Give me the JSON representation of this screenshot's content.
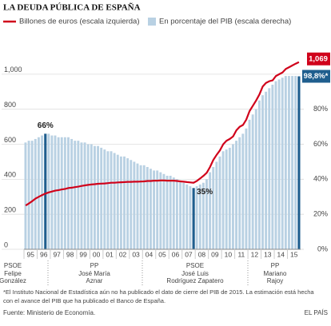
{
  "chart_data": {
    "type": "line_bar",
    "title": "LA DEUDA PÚBLICA DE ESPAÑA",
    "categories": [
      null,
      "95",
      null,
      null,
      null,
      "96",
      null,
      null,
      null,
      "97",
      null,
      null,
      null,
      "98",
      null,
      null,
      null,
      "99",
      null,
      null,
      null,
      "00",
      null,
      null,
      null,
      "01",
      null,
      null,
      null,
      "02",
      null,
      null,
      null,
      "03",
      null,
      null,
      null,
      "04",
      null,
      null,
      null,
      "05",
      null,
      null,
      null,
      "06",
      null,
      null,
      null,
      "07",
      null,
      null,
      null,
      "08",
      null,
      null,
      null,
      "09",
      null,
      null,
      null,
      "10",
      null,
      null,
      null,
      "11",
      null,
      null,
      null,
      "12",
      null,
      null,
      null,
      "13",
      null,
      null,
      null,
      "14",
      null,
      null,
      null,
      "15",
      null,
      null
    ],
    "series": [
      {
        "name": "Billones de euros (escala izquierda)",
        "color": "#d0021b",
        "values": [
          250,
          262,
          275,
          290,
          300,
          310,
          318,
          325,
          330,
          335,
          338,
          342,
          345,
          350,
          352,
          355,
          358,
          362,
          365,
          368,
          370,
          372,
          374,
          375,
          376,
          378,
          380,
          380,
          382,
          383,
          384,
          385,
          385,
          386,
          386,
          387,
          388,
          390,
          390,
          392,
          392,
          393,
          393,
          392,
          392,
          392,
          390,
          388,
          386,
          384,
          382,
          380,
          390,
          405,
          420,
          437,
          470,
          510,
          540,
          565,
          600,
          620,
          630,
          645,
          680,
          700,
          710,
          740,
          790,
          820,
          850,
          885,
          930,
          950,
          960,
          965,
          990,
          1000,
          1010,
          1030,
          1040,
          1050,
          1060,
          1069
        ],
        "value_labels": [
          null,
          null,
          null,
          null,
          null,
          null,
          null,
          null,
          null,
          null,
          null,
          null,
          null,
          null,
          null,
          null,
          null,
          null,
          null,
          null,
          null,
          null,
          null,
          null,
          null,
          null,
          null,
          null,
          null,
          null,
          null,
          null,
          null,
          null,
          null,
          null,
          null,
          null,
          null,
          null,
          null,
          null,
          null,
          null,
          null,
          null,
          null,
          null,
          null,
          null,
          null,
          null,
          null,
          null,
          null,
          null,
          null,
          null,
          null,
          null,
          null,
          null,
          null,
          null,
          null,
          null,
          null,
          null,
          null,
          null,
          null,
          null,
          null,
          null,
          null,
          null,
          null,
          null,
          null,
          null,
          null,
          null,
          null,
          "1,069"
        ]
      },
      {
        "name": "En porcentaje del PIB (escala derecha)",
        "color": "#b9d1e3",
        "highlight_color": "#1f5e8e",
        "axis": "y2",
        "values": [
          61,
          62,
          62,
          63,
          64,
          65,
          66,
          66,
          65,
          65,
          64,
          64,
          64,
          64,
          63,
          62,
          62,
          61,
          61,
          60,
          60,
          59,
          59,
          58,
          57,
          56,
          56,
          55,
          54,
          53,
          53,
          52,
          51,
          50,
          49,
          48,
          48,
          47,
          46,
          45,
          45,
          44,
          43,
          42,
          42,
          41,
          40,
          39,
          38,
          37,
          36,
          35,
          36,
          37,
          38,
          40,
          44,
          47,
          50,
          53,
          56,
          57,
          58,
          60,
          62,
          64,
          66,
          69,
          74,
          77,
          80,
          85,
          88,
          90,
          92,
          94,
          96,
          97,
          98,
          99,
          99,
          99,
          99,
          98.8
        ],
        "value_labels": [
          null,
          null,
          null,
          null,
          null,
          null,
          "66%",
          null,
          null,
          null,
          null,
          null,
          null,
          null,
          null,
          null,
          null,
          null,
          null,
          null,
          null,
          null,
          null,
          null,
          null,
          null,
          null,
          null,
          null,
          null,
          null,
          null,
          null,
          null,
          null,
          null,
          null,
          null,
          null,
          null,
          null,
          null,
          null,
          null,
          null,
          null,
          null,
          null,
          null,
          null,
          null,
          "35%",
          null,
          null,
          null,
          null,
          null,
          null,
          null,
          null,
          null,
          null,
          null,
          null,
          null,
          null,
          null,
          null,
          null,
          null,
          null,
          null,
          null,
          null,
          null,
          null,
          null,
          null,
          null,
          null,
          null,
          null,
          null,
          "98,8%*"
        ]
      }
    ],
    "ylim": [
      0,
      1150
    ],
    "yticks": [
      0,
      200,
      400,
      600,
      800,
      {
        "value": 1000,
        "label": "1,000"
      }
    ],
    "y2lim": [
      0,
      115
    ],
    "y2ticks": [
      {
        "value": 0,
        "label": "0%"
      },
      {
        "value": 20,
        "label": "20%"
      },
      {
        "value": 40,
        "label": "40%"
      },
      {
        "value": 60,
        "label": "60%"
      },
      {
        "value": 80,
        "label": "80%"
      }
    ],
    "grid": true,
    "governments": [
      {
        "party": "PSOE",
        "leader": [
          "Felipe",
          "González"
        ]
      },
      {
        "party": "PP",
        "leader": [
          "José María",
          "Aznar"
        ]
      },
      {
        "party": "PSOE",
        "leader": [
          "José Luis",
          "Rodríguez Zapatero"
        ]
      },
      {
        "party": "PP",
        "leader": [
          "Mariano",
          "Rajoy"
        ]
      }
    ],
    "footnote": [
      "*El Instituto Nacional de Estadística aún no ha publicado el dato de cierre del PIB de 2015. La estimación está hecha",
      "con el avance del PIB que ha publicado el Banco de España."
    ],
    "source": "Fuente: Ministerio de Economía.",
    "brand": "EL PAÍS"
  }
}
